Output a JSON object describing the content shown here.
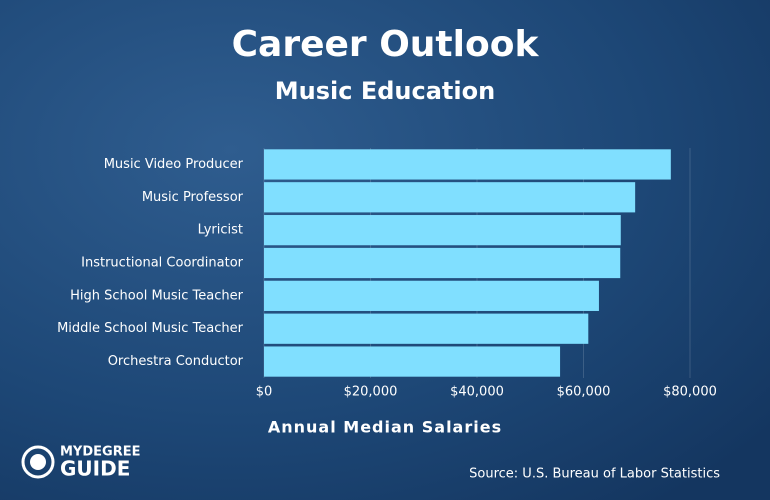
{
  "chart_data": {
    "type": "bar",
    "orientation": "horizontal",
    "title": "Career Outlook",
    "subtitle": "Music Education",
    "categories": [
      "Music Video Producer",
      "Music Professor",
      "Lyricist",
      "Instructional Coordinator",
      "High School Music Teacher",
      "Middle School Music Teacher",
      "Orchestra Conductor"
    ],
    "values": [
      76400,
      69700,
      67000,
      66900,
      62900,
      60900,
      55600
    ],
    "color": "#80dfff",
    "xlim": [
      0,
      80000
    ],
    "xticks": [
      {
        "value": 0,
        "label": "$0"
      },
      {
        "value": 20000,
        "label": "$20,000"
      },
      {
        "value": 40000,
        "label": "$40,000"
      },
      {
        "value": 60000,
        "label": "$60,000"
      },
      {
        "value": 80000,
        "label": "$80,000"
      }
    ],
    "xlabel": "Annual Median Salaries",
    "source": "Source: U.S. Bureau of Labor Statistics",
    "logo": [
      "MYDEGREE",
      "GUIDE"
    ]
  }
}
